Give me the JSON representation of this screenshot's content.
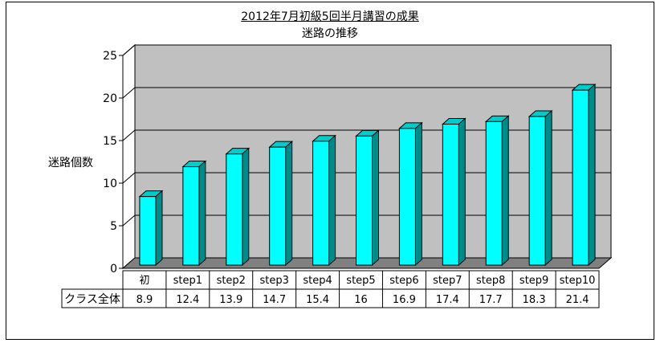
{
  "chart_data": {
    "type": "bar",
    "title": "2012年7月初級5回半月講習の成果",
    "subtitle": "迷路の推移",
    "ylabel": "迷路個数",
    "ylim": [
      0,
      25
    ],
    "yticks": [
      "0",
      "5",
      "10",
      "15",
      "20",
      "25"
    ],
    "categories": [
      "初",
      "step1",
      "step2",
      "step3",
      "step4",
      "step5",
      "step6",
      "step7",
      "step8",
      "step9",
      "step10"
    ],
    "series": [
      {
        "name": "クラス全体",
        "values": [
          8.9,
          12.4,
          13.9,
          14.7,
          15.4,
          16,
          16.9,
          17.4,
          17.7,
          18.3,
          21.4
        ],
        "labels": [
          "8.9",
          "12.4",
          "13.9",
          "14.7",
          "15.4",
          "16",
          "16.9",
          "17.4",
          "17.7",
          "18.3",
          "21.4"
        ]
      }
    ],
    "grid": true,
    "legend": "data-table-bottom",
    "colors": {
      "bar_front": "#00ffff",
      "bar_side": "#008b8b",
      "bar_top": "#00cccc",
      "wall": "#c0c0c0",
      "floor": "#808080",
      "axis": "#000000"
    }
  }
}
